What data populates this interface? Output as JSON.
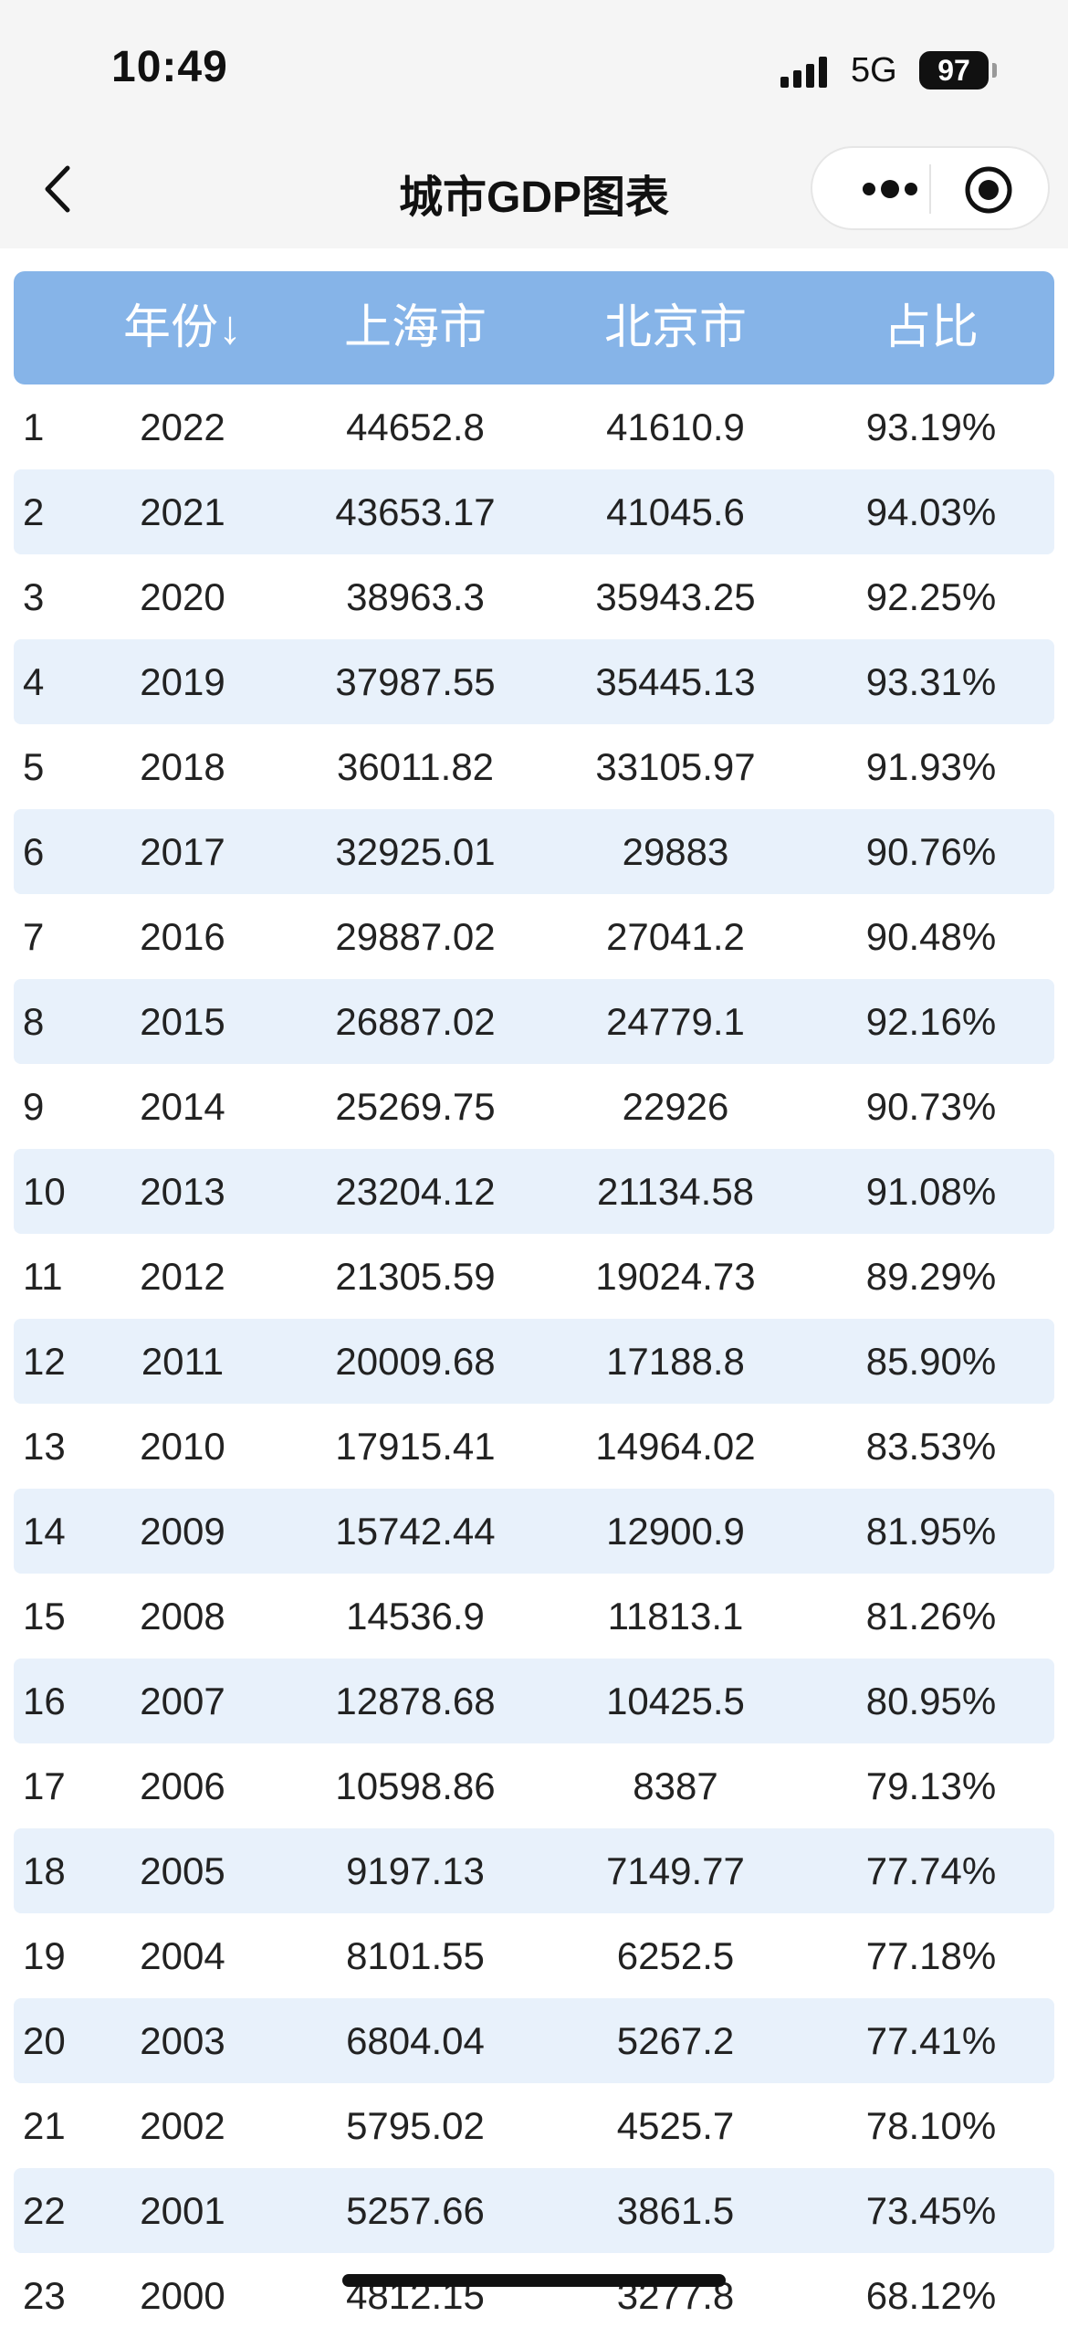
{
  "status_bar": {
    "time": "10:49",
    "network": "5G",
    "battery": "97"
  },
  "nav": {
    "title": "城市GDP图表"
  },
  "table": {
    "headers": {
      "year": "年份↓",
      "shanghai": "上海市",
      "beijing": "北京市",
      "ratio": "占比"
    },
    "rows": [
      {
        "idx": "1",
        "year": "2022",
        "sh": "44652.8",
        "bj": "41610.9",
        "pct": "93.19%"
      },
      {
        "idx": "2",
        "year": "2021",
        "sh": "43653.17",
        "bj": "41045.6",
        "pct": "94.03%"
      },
      {
        "idx": "3",
        "year": "2020",
        "sh": "38963.3",
        "bj": "35943.25",
        "pct": "92.25%"
      },
      {
        "idx": "4",
        "year": "2019",
        "sh": "37987.55",
        "bj": "35445.13",
        "pct": "93.31%"
      },
      {
        "idx": "5",
        "year": "2018",
        "sh": "36011.82",
        "bj": "33105.97",
        "pct": "91.93%"
      },
      {
        "idx": "6",
        "year": "2017",
        "sh": "32925.01",
        "bj": "29883",
        "pct": "90.76%"
      },
      {
        "idx": "7",
        "year": "2016",
        "sh": "29887.02",
        "bj": "27041.2",
        "pct": "90.48%"
      },
      {
        "idx": "8",
        "year": "2015",
        "sh": "26887.02",
        "bj": "24779.1",
        "pct": "92.16%"
      },
      {
        "idx": "9",
        "year": "2014",
        "sh": "25269.75",
        "bj": "22926",
        "pct": "90.73%"
      },
      {
        "idx": "10",
        "year": "2013",
        "sh": "23204.12",
        "bj": "21134.58",
        "pct": "91.08%"
      },
      {
        "idx": "11",
        "year": "2012",
        "sh": "21305.59",
        "bj": "19024.73",
        "pct": "89.29%"
      },
      {
        "idx": "12",
        "year": "2011",
        "sh": "20009.68",
        "bj": "17188.8",
        "pct": "85.90%"
      },
      {
        "idx": "13",
        "year": "2010",
        "sh": "17915.41",
        "bj": "14964.02",
        "pct": "83.53%"
      },
      {
        "idx": "14",
        "year": "2009",
        "sh": "15742.44",
        "bj": "12900.9",
        "pct": "81.95%"
      },
      {
        "idx": "15",
        "year": "2008",
        "sh": "14536.9",
        "bj": "11813.1",
        "pct": "81.26%"
      },
      {
        "idx": "16",
        "year": "2007",
        "sh": "12878.68",
        "bj": "10425.5",
        "pct": "80.95%"
      },
      {
        "idx": "17",
        "year": "2006",
        "sh": "10598.86",
        "bj": "8387",
        "pct": "79.13%"
      },
      {
        "idx": "18",
        "year": "2005",
        "sh": "9197.13",
        "bj": "7149.77",
        "pct": "77.74%"
      },
      {
        "idx": "19",
        "year": "2004",
        "sh": "8101.55",
        "bj": "6252.5",
        "pct": "77.18%"
      },
      {
        "idx": "20",
        "year": "2003",
        "sh": "6804.04",
        "bj": "5267.2",
        "pct": "77.41%"
      },
      {
        "idx": "21",
        "year": "2002",
        "sh": "5795.02",
        "bj": "4525.7",
        "pct": "78.10%"
      },
      {
        "idx": "22",
        "year": "2001",
        "sh": "5257.66",
        "bj": "3861.5",
        "pct": "73.45%"
      },
      {
        "idx": "23",
        "year": "2000",
        "sh": "4812.15",
        "bj": "3277.8",
        "pct": "68.12%"
      }
    ]
  },
  "colors": {
    "header_bg": "#86b4e8",
    "alt_row_bg": "#e8f1fb"
  }
}
